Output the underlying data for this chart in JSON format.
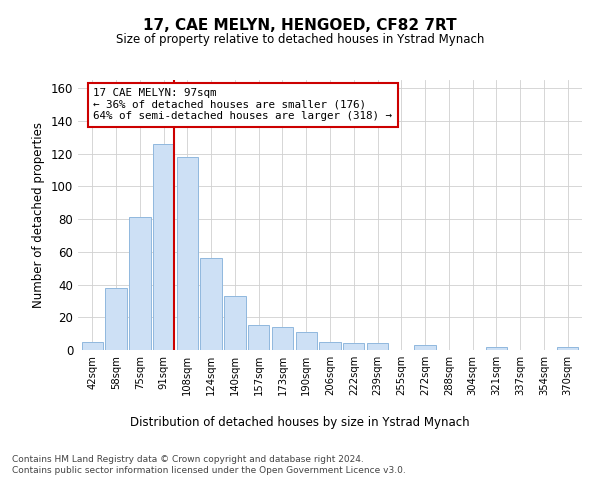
{
  "title": "17, CAE MELYN, HENGOED, CF82 7RT",
  "subtitle": "Size of property relative to detached houses in Ystrad Mynach",
  "xlabel": "Distribution of detached houses by size in Ystrad Mynach",
  "ylabel": "Number of detached properties",
  "bar_color": "#cde0f5",
  "bar_edge_color": "#90b8de",
  "grid_color": "#d0d0d0",
  "annotation_line_color": "#cc0000",
  "annotation_box_color": "#cc0000",
  "annotation_line1": "17 CAE MELYN: 97sqm",
  "annotation_line2": "← 36% of detached houses are smaller (176)",
  "annotation_line3": "64% of semi-detached houses are larger (318) →",
  "footer": "Contains HM Land Registry data © Crown copyright and database right 2024.\nContains public sector information licensed under the Open Government Licence v3.0.",
  "categories": [
    "42sqm",
    "58sqm",
    "75sqm",
    "91sqm",
    "108sqm",
    "124sqm",
    "140sqm",
    "157sqm",
    "173sqm",
    "190sqm",
    "206sqm",
    "222sqm",
    "239sqm",
    "255sqm",
    "272sqm",
    "288sqm",
    "304sqm",
    "321sqm",
    "337sqm",
    "354sqm",
    "370sqm"
  ],
  "values": [
    5,
    38,
    81,
    126,
    118,
    56,
    33,
    15,
    14,
    11,
    5,
    4,
    4,
    0,
    3,
    0,
    0,
    2,
    0,
    0,
    2
  ],
  "ylim": [
    0,
    165
  ],
  "yticks": [
    0,
    20,
    40,
    60,
    80,
    100,
    120,
    140,
    160
  ],
  "bar_width": 0.9,
  "figsize": [
    6.0,
    5.0
  ],
  "dpi": 100,
  "line_x_index": 3.43
}
